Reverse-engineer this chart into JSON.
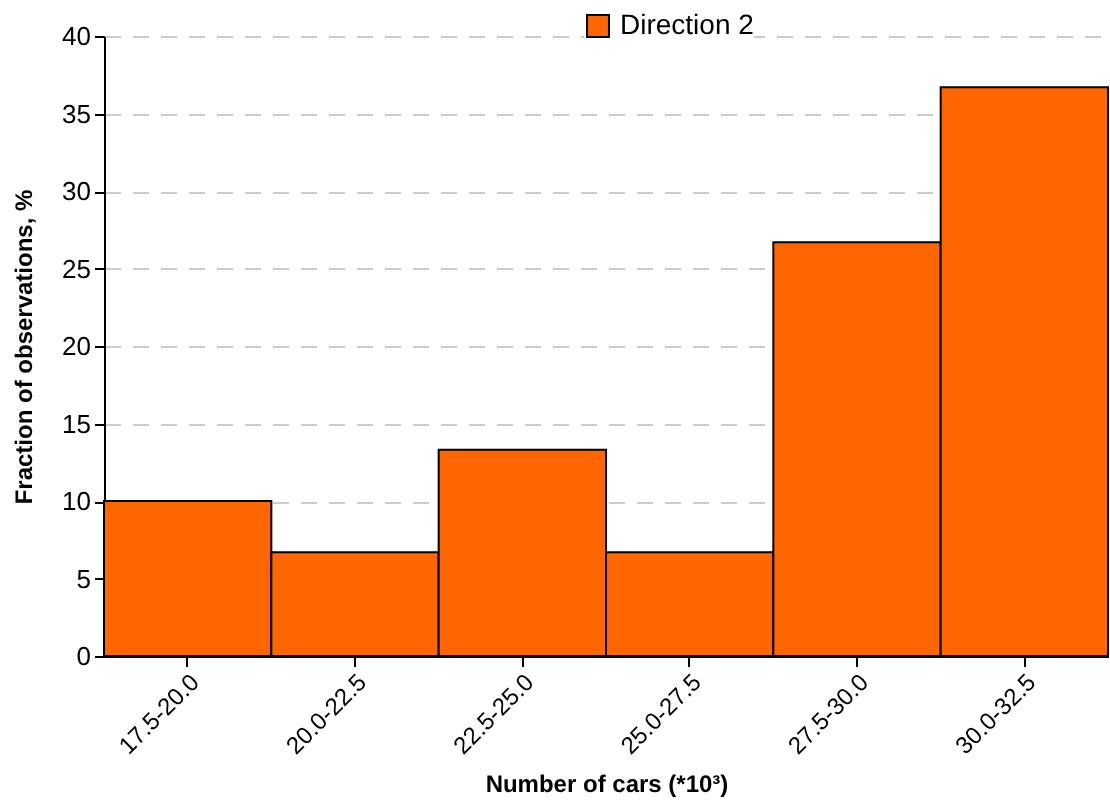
{
  "chart_data": {
    "type": "bar",
    "xlabel": "Number of cars (*10³)",
    "ylabel": "Fraction of observations, %",
    "categories": [
      "17.5-20.0",
      "20.0-22.5",
      "22.5-25.0",
      "25.0-27.5",
      "27.5-30.0",
      "30.0-32.5"
    ],
    "series": [
      {
        "name": "Direction 2",
        "color": "#ff6600",
        "values": [
          10.0,
          6.7,
          13.3,
          6.7,
          26.7,
          36.7
        ]
      }
    ],
    "ylim": [
      0,
      40
    ],
    "yticks": [
      0,
      5,
      10,
      15,
      20,
      25,
      30,
      35,
      40
    ],
    "grid": "y",
    "legend": "top"
  }
}
